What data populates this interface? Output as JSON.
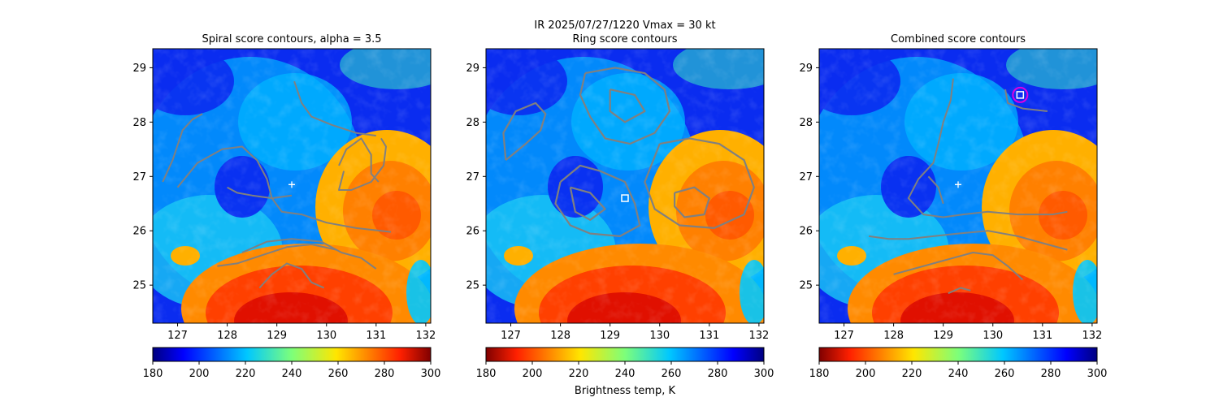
{
  "figure": {
    "suptitle_line1": "IR  2025/07/27/1220    Vmax = 30 kt",
    "colorbar_label": "Brightness temp, K"
  },
  "chart_data": [
    {
      "type": "heatmap",
      "title": "Spiral score contours, alpha =  3.5",
      "xlim": [
        126.5,
        132.1
      ],
      "ylim": [
        24.3,
        29.35
      ],
      "xticks": [
        127,
        128,
        129,
        130,
        131,
        132
      ],
      "yticks": [
        25,
        26,
        27,
        28,
        29
      ],
      "colorbar": {
        "ticks": [
          180,
          200,
          220,
          240,
          260,
          280,
          300
        ],
        "range": [
          180,
          300
        ],
        "reversed": false
      },
      "marker": {
        "kind": "plus",
        "lon": 129.3,
        "lat": 26.85
      },
      "contours": [
        [
          [
            127.0,
            26.8
          ],
          [
            127.4,
            27.25
          ],
          [
            127.9,
            27.5
          ],
          [
            128.3,
            27.55
          ],
          [
            128.6,
            27.3
          ],
          [
            128.8,
            26.95
          ],
          [
            128.9,
            26.6
          ],
          [
            129.1,
            26.35
          ],
          [
            129.5,
            26.3
          ],
          [
            130.0,
            26.15
          ],
          [
            130.6,
            26.05
          ],
          [
            131.3,
            25.98
          ]
        ],
        [
          [
            126.7,
            26.9
          ],
          [
            126.9,
            27.3
          ],
          [
            127.1,
            27.85
          ],
          [
            127.3,
            28.05
          ],
          [
            127.5,
            28.15
          ]
        ],
        [
          [
            128.0,
            26.8
          ],
          [
            128.2,
            26.7
          ],
          [
            128.5,
            26.65
          ],
          [
            128.9,
            26.6
          ],
          [
            129.3,
            26.65
          ]
        ],
        [
          [
            129.35,
            28.75
          ],
          [
            129.5,
            28.35
          ],
          [
            129.7,
            28.1
          ],
          [
            130.1,
            27.95
          ],
          [
            130.6,
            27.8
          ],
          [
            131.0,
            27.75
          ]
        ],
        [
          [
            130.25,
            27.2
          ],
          [
            130.4,
            27.5
          ],
          [
            130.7,
            27.7
          ],
          [
            130.9,
            27.4
          ],
          [
            130.9,
            27.05
          ],
          [
            131.05,
            26.9
          ]
        ],
        [
          [
            130.35,
            27.1
          ],
          [
            130.25,
            26.75
          ],
          [
            130.5,
            26.75
          ],
          [
            130.9,
            26.9
          ],
          [
            131.15,
            27.2
          ],
          [
            131.2,
            27.55
          ],
          [
            131.1,
            27.7
          ]
        ],
        [
          [
            128.3,
            25.6
          ],
          [
            128.8,
            25.8
          ],
          [
            129.3,
            25.85
          ],
          [
            129.9,
            25.8
          ],
          [
            130.3,
            25.6
          ],
          [
            130.7,
            25.5
          ],
          [
            131.0,
            25.3
          ]
        ],
        [
          [
            127.8,
            25.35
          ],
          [
            128.2,
            25.4
          ],
          [
            128.7,
            25.55
          ],
          [
            129.2,
            25.7
          ],
          [
            129.7,
            25.75
          ],
          [
            130.2,
            25.65
          ]
        ],
        [
          [
            128.65,
            24.95
          ],
          [
            128.9,
            25.2
          ],
          [
            129.2,
            25.4
          ],
          [
            129.5,
            25.3
          ],
          [
            129.7,
            25.05
          ],
          [
            129.95,
            24.95
          ]
        ]
      ]
    },
    {
      "type": "heatmap",
      "title": "Ring score contours",
      "xlim": [
        126.5,
        132.1
      ],
      "ylim": [
        24.3,
        29.35
      ],
      "xticks": [
        127,
        128,
        129,
        130,
        131,
        132
      ],
      "yticks": [
        25,
        26,
        27,
        28,
        29
      ],
      "colorbar": {
        "ticks": [
          180,
          200,
          220,
          240,
          260,
          280,
          300
        ],
        "range": [
          180,
          300
        ],
        "reversed": true
      },
      "marker": {
        "kind": "square",
        "lon": 129.3,
        "lat": 26.6
      },
      "contours": [
        [
          [
            126.9,
            27.3
          ],
          [
            127.3,
            27.6
          ],
          [
            127.6,
            27.85
          ],
          [
            127.7,
            28.15
          ],
          [
            127.5,
            28.35
          ],
          [
            127.1,
            28.2
          ],
          [
            126.85,
            27.8
          ],
          [
            126.9,
            27.3
          ]
        ],
        [
          [
            128.0,
            26.9
          ],
          [
            128.4,
            27.2
          ],
          [
            128.8,
            27.1
          ],
          [
            129.3,
            26.9
          ],
          [
            129.5,
            26.5
          ],
          [
            129.6,
            26.1
          ],
          [
            129.2,
            25.9
          ],
          [
            128.6,
            25.95
          ],
          [
            128.2,
            26.1
          ],
          [
            127.9,
            26.5
          ],
          [
            128.0,
            26.9
          ]
        ],
        [
          [
            128.5,
            28.9
          ],
          [
            129.1,
            29.0
          ],
          [
            129.7,
            28.9
          ],
          [
            130.1,
            28.6
          ],
          [
            130.2,
            28.2
          ],
          [
            129.9,
            27.8
          ],
          [
            129.4,
            27.6
          ],
          [
            128.9,
            27.7
          ],
          [
            128.6,
            28.1
          ],
          [
            128.4,
            28.5
          ],
          [
            128.5,
            28.9
          ]
        ],
        [
          [
            130.0,
            27.6
          ],
          [
            130.6,
            27.7
          ],
          [
            131.2,
            27.6
          ],
          [
            131.7,
            27.3
          ],
          [
            131.9,
            26.8
          ],
          [
            131.7,
            26.3
          ],
          [
            131.1,
            26.05
          ],
          [
            130.4,
            26.1
          ],
          [
            129.9,
            26.4
          ],
          [
            129.7,
            26.9
          ],
          [
            130.0,
            27.6
          ]
        ],
        [
          [
            130.3,
            26.7
          ],
          [
            130.7,
            26.8
          ],
          [
            131.0,
            26.6
          ],
          [
            130.9,
            26.3
          ],
          [
            130.5,
            26.25
          ],
          [
            130.3,
            26.45
          ],
          [
            130.3,
            26.7
          ]
        ],
        [
          [
            128.2,
            26.8
          ],
          [
            128.6,
            26.7
          ],
          [
            128.9,
            26.4
          ],
          [
            128.6,
            26.2
          ],
          [
            128.3,
            26.35
          ],
          [
            128.2,
            26.8
          ]
        ],
        [
          [
            129.0,
            28.6
          ],
          [
            129.5,
            28.5
          ],
          [
            129.7,
            28.2
          ],
          [
            129.3,
            28.0
          ],
          [
            129.0,
            28.2
          ],
          [
            129.0,
            28.6
          ]
        ]
      ]
    },
    {
      "type": "heatmap",
      "title": "Combined score contours",
      "xlim": [
        126.5,
        132.1
      ],
      "ylim": [
        24.3,
        29.35
      ],
      "xticks": [
        127,
        128,
        129,
        130,
        131,
        132
      ],
      "yticks": [
        25,
        26,
        27,
        28,
        29
      ],
      "colorbar": {
        "ticks": [
          180,
          200,
          220,
          240,
          260,
          280,
          300
        ],
        "range": [
          180,
          300
        ],
        "reversed": true
      },
      "marker": {
        "kind": "plus",
        "lon": 129.3,
        "lat": 26.85
      },
      "best_center": {
        "lon": 130.55,
        "lat": 28.5
      },
      "contours": [
        [
          [
            129.2,
            28.8
          ],
          [
            129.15,
            28.4
          ],
          [
            129.0,
            28.0
          ],
          [
            128.9,
            27.6
          ],
          [
            128.8,
            27.25
          ],
          [
            128.5,
            26.95
          ],
          [
            128.3,
            26.6
          ],
          [
            128.6,
            26.3
          ],
          [
            129.0,
            26.25
          ],
          [
            129.4,
            26.3
          ],
          [
            129.9,
            26.35
          ],
          [
            130.5,
            26.3
          ],
          [
            131.2,
            26.3
          ],
          [
            131.5,
            26.35
          ]
        ],
        [
          [
            128.7,
            27.0
          ],
          [
            128.9,
            26.8
          ],
          [
            129.0,
            26.5
          ]
        ],
        [
          [
            130.25,
            28.6
          ],
          [
            130.3,
            28.35
          ],
          [
            130.6,
            28.25
          ],
          [
            131.1,
            28.2
          ]
        ],
        [
          [
            127.5,
            25.9
          ],
          [
            127.9,
            25.85
          ],
          [
            128.3,
            25.85
          ],
          [
            128.8,
            25.9
          ],
          [
            129.3,
            25.95
          ],
          [
            129.9,
            26.0
          ],
          [
            130.5,
            25.9
          ],
          [
            131.1,
            25.75
          ],
          [
            131.5,
            25.65
          ]
        ],
        [
          [
            128.0,
            25.2
          ],
          [
            128.4,
            25.3
          ],
          [
            128.8,
            25.4
          ],
          [
            129.2,
            25.5
          ],
          [
            129.6,
            25.6
          ],
          [
            130.0,
            25.55
          ],
          [
            130.3,
            25.35
          ],
          [
            130.6,
            25.1
          ]
        ],
        [
          [
            129.1,
            24.85
          ],
          [
            129.35,
            24.95
          ],
          [
            129.55,
            24.9
          ]
        ]
      ]
    }
  ]
}
